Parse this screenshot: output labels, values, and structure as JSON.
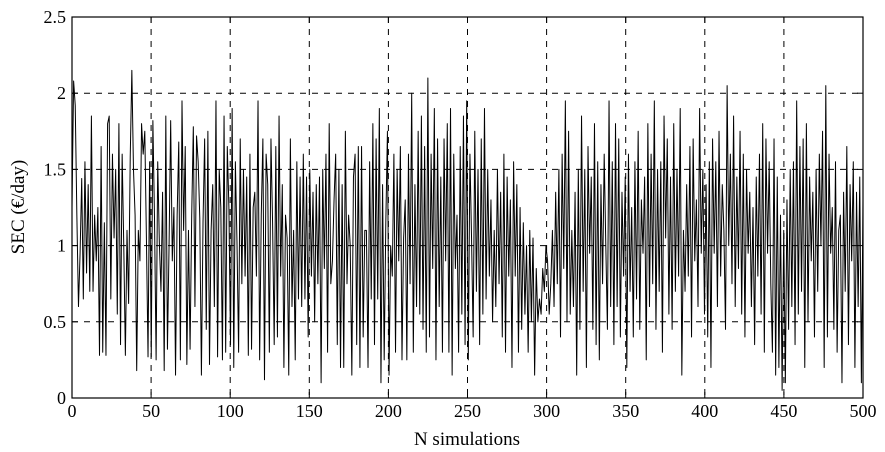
{
  "chart_data": {
    "type": "line",
    "title": "",
    "xlabel": "N simulations",
    "ylabel": "SEC (€/day)",
    "xlim": [
      0,
      500
    ],
    "ylim": [
      0,
      2.5
    ],
    "xticks": [
      0,
      50,
      100,
      150,
      200,
      250,
      300,
      350,
      400,
      450,
      500
    ],
    "yticks": [
      0,
      0.5,
      1,
      1.5,
      2,
      2.5
    ],
    "grid": true,
    "legend": "none",
    "series": [
      {
        "values": [
          1.25,
          2.08,
          1.92,
          1.2,
          0.6,
          0.95,
          1.44,
          0.65,
          1.55,
          0.82,
          1.4,
          0.7,
          1.85,
          0.7,
          1.2,
          0.9,
          1.25,
          0.28,
          1.65,
          0.3,
          1.15,
          0.28,
          1.8,
          1.85,
          0.65,
          1.6,
          1.05,
          1.5,
          0.55,
          1.8,
          0.35,
          1.6,
          1.0,
          0.28,
          1.1,
          0.62,
          1.58,
          2.15,
          1.5,
          1.2,
          0.18,
          1.1,
          0.9,
          1.8,
          1.6,
          1.75,
          1.05,
          0.27,
          1.55,
          0.27,
          1.82,
          1.18,
          0.25,
          1.55,
          1.02,
          0.7,
          1.35,
          0.18,
          1.85,
          0.32,
          1.0,
          1.82,
          0.9,
          1.25,
          0.15,
          1.2,
          1.68,
          0.25,
          1.95,
          1.1,
          1.65,
          0.22,
          1.1,
          0.32,
          1.2,
          1.78,
          0.6,
          1.72,
          1.55,
          1.18,
          0.15,
          1.15,
          1.7,
          0.45,
          1.75,
          0.22,
          1.1,
          1.4,
          0.6,
          1.95,
          0.27,
          1.5,
          1.25,
          0.25,
          1.85,
          0.3,
          1.65,
          1.25,
          0.35,
          1.9,
          0.2,
          1.55,
          1.02,
          0.3,
          1.7,
          0.75,
          1.5,
          0.8,
          1.45,
          0.28,
          1.6,
          0.32,
          1.25,
          1.35,
          0.8,
          1.95,
          0.25,
          1.2,
          1.7,
          0.12,
          1.6,
          1.4,
          0.3,
          1.7,
          1.15,
          0.35,
          1.65,
          0.4,
          1.85,
          0.8,
          1.4,
          0.2,
          1.2,
          1.05,
          0.15,
          1.7,
          0.6,
          1.1,
          0.25,
          1.55,
          0.65,
          1.45,
          0.6,
          1.6,
          0.65,
          1.45,
          0.4,
          1.5,
          0.8,
          1.35,
          0.5,
          1.4,
          0.75,
          1.45,
          0.1,
          1.5,
          0.85,
          1.6,
          0.3,
          1.8,
          0.75,
          0.9,
          1.3,
          1.6,
          0.35,
          1.5,
          0.2,
          1.4,
          0.2,
          1.75,
          0.75,
          1.2,
          1.0,
          0.15,
          1.45,
          1.6,
          0.35,
          1.65,
          0.2,
          1.65,
          0.4,
          1.1,
          1.1,
          0.2,
          1.55,
          0.65,
          1.8,
          0.35,
          1.7,
          0.65,
          1.9,
          0.1,
          1.4,
          0.25,
          1.15,
          1.75,
          0.15,
          1.0,
          0.8,
          1.6,
          0.3,
          1.5,
          0.9,
          1.65,
          0.25,
          1.05,
          1.3,
          0.25,
          1.6,
          0.75,
          2.0,
          0.3,
          1.4,
          0.6,
          1.75,
          0.55,
          1.85,
          0.45,
          1.65,
          0.3,
          2.1,
          0.4,
          1.6,
          0.85,
          1.9,
          0.25,
          1.7,
          0.6,
          1.45,
          0.3,
          1.7,
          0.9,
          1.8,
          0.3,
          1.9,
          0.15,
          1.6,
          0.85,
          1.2,
          0.3,
          1.65,
          0.55,
          1.85,
          0.35,
          1.95,
          0.25,
          1.6,
          1.05,
          0.4,
          1.75,
          0.7,
          1.5,
          0.35,
          1.7,
          0.55,
          1.9,
          0.65,
          1.5,
          0.8,
          1.3,
          0.5,
          1.1,
          0.6,
          1.5,
          0.75,
          1.35,
          0.4,
          1.6,
          0.3,
          1.45,
          0.8,
          1.3,
          0.2,
          1.55,
          0.8,
          1.4,
          0.3,
          1.25,
          0.45,
          1.15,
          0.55,
          1.0,
          0.3,
          1.1,
          0.5,
          1.05,
          0.15,
          0.85,
          0.5,
          0.65,
          0.55,
          0.85,
          0.7,
          1.0,
          0.9,
          0.55,
          0.75,
          1.1,
          0.6,
          1.35,
          0.75,
          1.5,
          0.4,
          1.6,
          0.85,
          1.95,
          0.5,
          1.75,
          0.55,
          1.1,
          0.6,
          1.35,
          0.15,
          1.5,
          0.45,
          1.85,
          0.7,
          1.5,
          0.2,
          1.65,
          0.95,
          1.45,
          0.45,
          1.8,
          0.35,
          1.55,
          0.25,
          1.4,
          0.75,
          1.6,
          1.0,
          0.45,
          1.95,
          0.6,
          1.55,
          0.35,
          1.8,
          0.6,
          1.7,
          0.4,
          1.35,
          0.8,
          1.45,
          0.2,
          1.6,
          0.7,
          1.25,
          0.4,
          1.55,
          0.65,
          1.75,
          0.45,
          1.3,
          0.95,
          1.45,
          0.25,
          1.8,
          0.6,
          1.6,
          0.75,
          1.95,
          0.45,
          1.5,
          0.7,
          1.55,
          0.3,
          1.85,
          1.05,
          1.7,
          0.55,
          1.45,
          0.45,
          1.8,
          0.7,
          1.5,
          0.8,
          1.9,
          0.15,
          1.1,
          0.7,
          1.4,
          0.8,
          1.65,
          0.4,
          1.7,
          0.9,
          1.3,
          0.6,
          1.9,
          0.95,
          1.5,
          0.55,
          1.4,
          0.4,
          1.55,
          0.2,
          1.7,
          0.95,
          1.55,
          0.6,
          1.75,
          0.8,
          1.4,
          1.1,
          0.45,
          2.05,
          1.0,
          1.6,
          0.75,
          1.85,
          0.6,
          1.45,
          0.85,
          1.75,
          0.55,
          1.6,
          0.4,
          1.5,
          0.95,
          1.35,
          0.6,
          1.25,
          0.35,
          1.45,
          0.8,
          1.6,
          0.55,
          1.8,
          0.3,
          1.7,
          0.95,
          1.55,
          0.75,
          0.3,
          1.7,
          0.15,
          1.45,
          0.2,
          1.2,
          0.05,
          1.1,
          0.1,
          1.3,
          0.45,
          1.5,
          0.6,
          1.55,
          0.35,
          1.95,
          0.55,
          1.65,
          0.7,
          1.7,
          0.2,
          1.8,
          0.5,
          1.45,
          0.9,
          1.35,
          0.4,
          1.5,
          0.7,
          1.6,
          1.0,
          1.75,
          0.2,
          2.05,
          0.4,
          1.6,
          0.95,
          1.25,
          0.45,
          1.55,
          0.3,
          1.1,
          1.2,
          0.1,
          1.35,
          0.7,
          1.65,
          0.35,
          1.4,
          0.9,
          1.55,
          0.2,
          1.35,
          0.6,
          1.45,
          0.1,
          1.3
        ]
      }
    ]
  }
}
